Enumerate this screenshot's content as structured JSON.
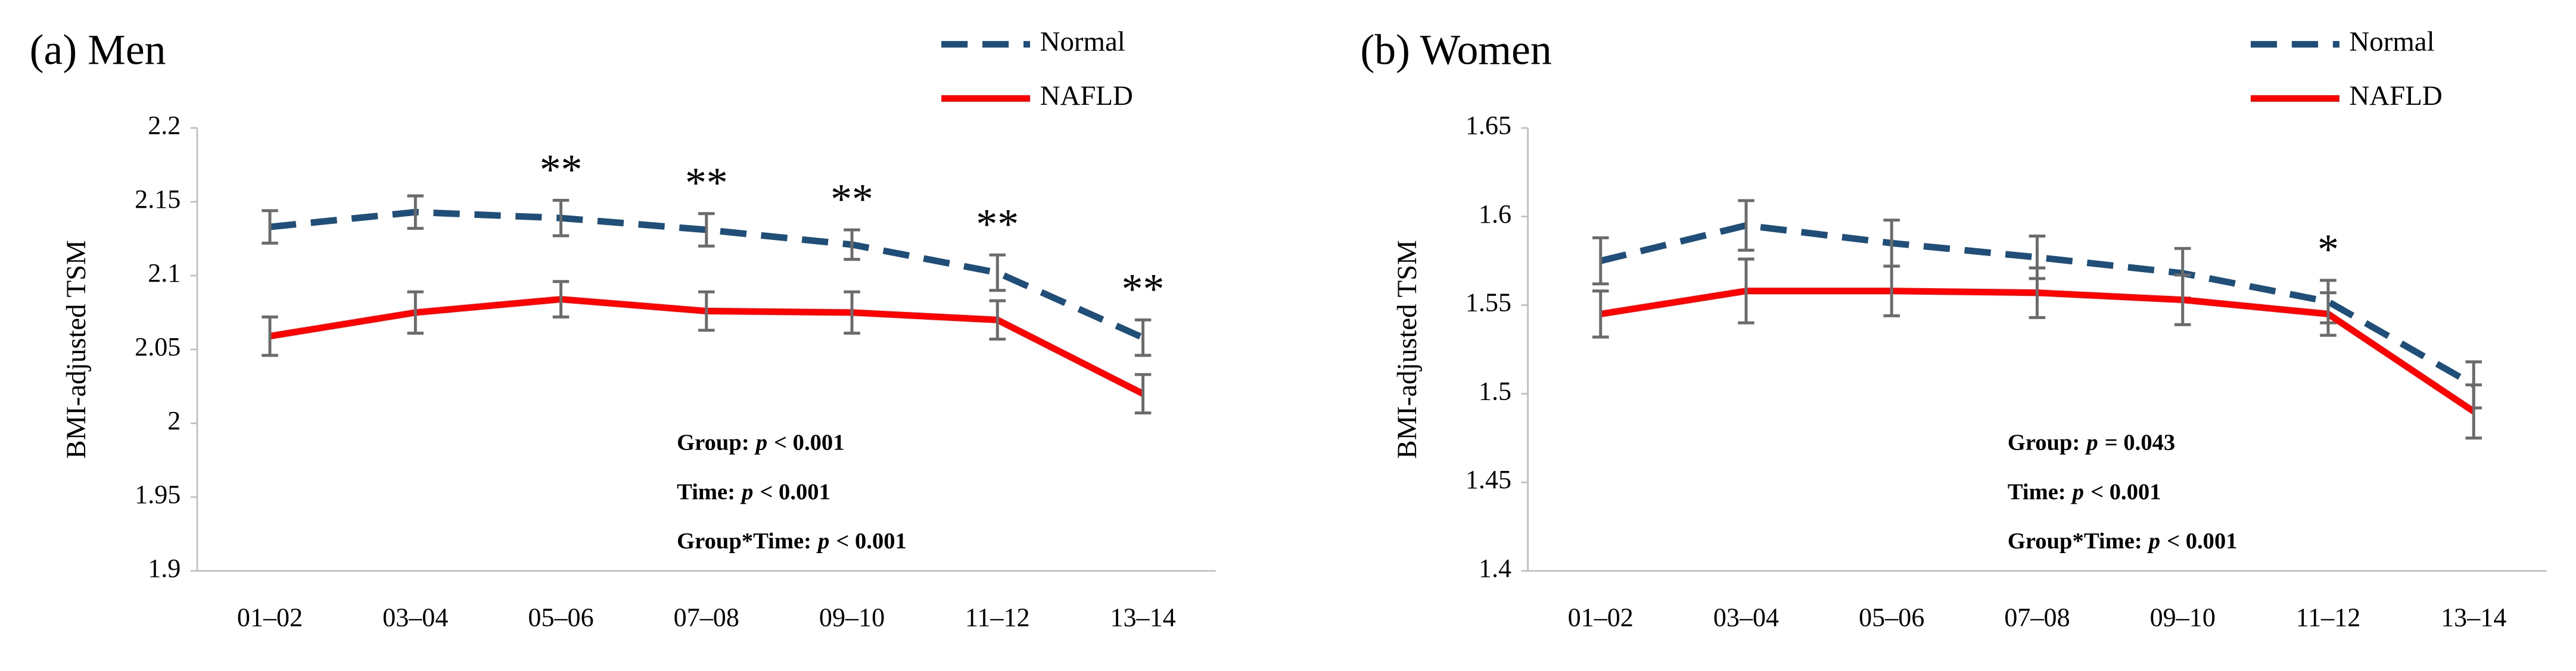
{
  "chart_data": [
    {
      "type": "line",
      "title": "(a) Men",
      "y_label": "BMI-adjusted TSM",
      "categories": [
        "01–02",
        "03–04",
        "05–06",
        "07–08",
        "09–10",
        "11–12",
        "13–14"
      ],
      "ylim": [
        1.9,
        2.2
      ],
      "yticks": [
        1.9,
        1.95,
        2,
        2.05,
        2.1,
        2.15,
        2.2
      ],
      "series": [
        {
          "name": "Normal",
          "color": "#1f4e79",
          "dash": true,
          "values": [
            2.133,
            2.143,
            2.139,
            2.131,
            2.121,
            2.102,
            2.058
          ],
          "errors": [
            0.011,
            0.011,
            0.012,
            0.011,
            0.01,
            0.012,
            0.012
          ]
        },
        {
          "name": "NAFLD",
          "color": "#ff0000",
          "dash": false,
          "values": [
            2.059,
            2.075,
            2.084,
            2.076,
            2.075,
            2.07,
            2.02
          ],
          "errors": [
            0.013,
            0.014,
            0.012,
            0.013,
            0.014,
            0.013,
            0.013
          ]
        }
      ],
      "annotations": [
        {
          "text": "**",
          "x": "05–06"
        },
        {
          "text": "**",
          "x": "07–08"
        },
        {
          "text": "**",
          "x": "09–10"
        },
        {
          "text": "**",
          "x": "11–12"
        },
        {
          "text": "**",
          "x": "13–14"
        }
      ],
      "stats": [
        {
          "label": "Group:",
          "symbol": "p",
          "value": "< 0.001"
        },
        {
          "label": "Time:",
          "symbol": "p",
          "value": "< 0.001"
        },
        {
          "label": "Group*Time:",
          "symbol": "p",
          "value": "< 0.001"
        }
      ]
    },
    {
      "type": "line",
      "title": "(b) Women",
      "y_label": "BMI-adjusted TSM",
      "categories": [
        "01–02",
        "03–04",
        "05–06",
        "07–08",
        "09–10",
        "11–12",
        "13–14"
      ],
      "ylim": [
        1.4,
        1.65
      ],
      "yticks": [
        1.4,
        1.45,
        1.5,
        1.55,
        1.6,
        1.65
      ],
      "series": [
        {
          "name": "Normal",
          "color": "#1f4e79",
          "dash": true,
          "values": [
            1.575,
            1.595,
            1.585,
            1.577,
            1.568,
            1.552,
            1.505
          ],
          "errors": [
            0.013,
            0.014,
            0.013,
            0.012,
            0.014,
            0.012,
            0.013
          ]
        },
        {
          "name": "NAFLD",
          "color": "#ff0000",
          "dash": false,
          "values": [
            1.545,
            1.558,
            1.558,
            1.557,
            1.553,
            1.545,
            1.49
          ],
          "errors": [
            0.013,
            0.018,
            0.014,
            0.014,
            0.014,
            0.012,
            0.015
          ]
        }
      ],
      "annotations": [
        {
          "text": "*",
          "x": "11–12"
        }
      ],
      "stats": [
        {
          "label": "Group:",
          "symbol": "p",
          "value": "= 0.043"
        },
        {
          "label": "Time:",
          "symbol": "p",
          "value": "< 0.001"
        },
        {
          "label": "Group*Time:",
          "symbol": "p",
          "value": "< 0.001"
        }
      ]
    }
  ]
}
